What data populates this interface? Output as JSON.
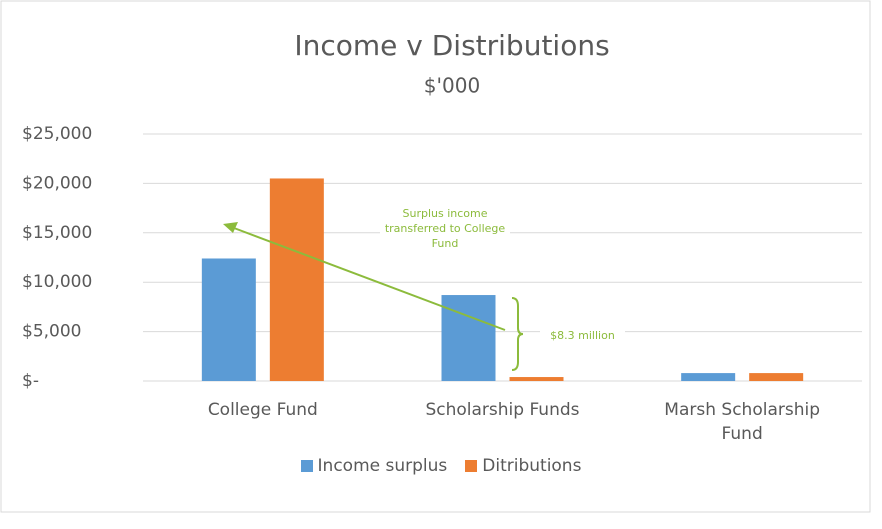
{
  "chart_data": {
    "type": "bar",
    "title": "Income v Distributions",
    "subtitle": "$'000",
    "categories": [
      "College Fund",
      "Scholarship Funds",
      "Marsh Scholarship Fund"
    ],
    "series": [
      {
        "name": "Income surplus",
        "color": "#5b9bd5",
        "values": [
          12400,
          8700,
          800
        ]
      },
      {
        "name": "Ditributions",
        "color": "#ed7d31",
        "values": [
          20500,
          400,
          800
        ]
      }
    ],
    "ylim": [
      0,
      25000
    ],
    "yticks": [
      {
        "value": 0,
        "label": "$-"
      },
      {
        "value": 5000,
        "label": "$5,000"
      },
      {
        "value": 10000,
        "label": "$10,000"
      },
      {
        "value": 15000,
        "label": "$15,000"
      },
      {
        "value": 20000,
        "label": "$20,000"
      },
      {
        "value": 25000,
        "label": "$25,000"
      }
    ],
    "grid": true,
    "legend": "bottom",
    "annotations": [
      "Surplus income transferred to College Fund",
      "$8.3 million"
    ]
  }
}
